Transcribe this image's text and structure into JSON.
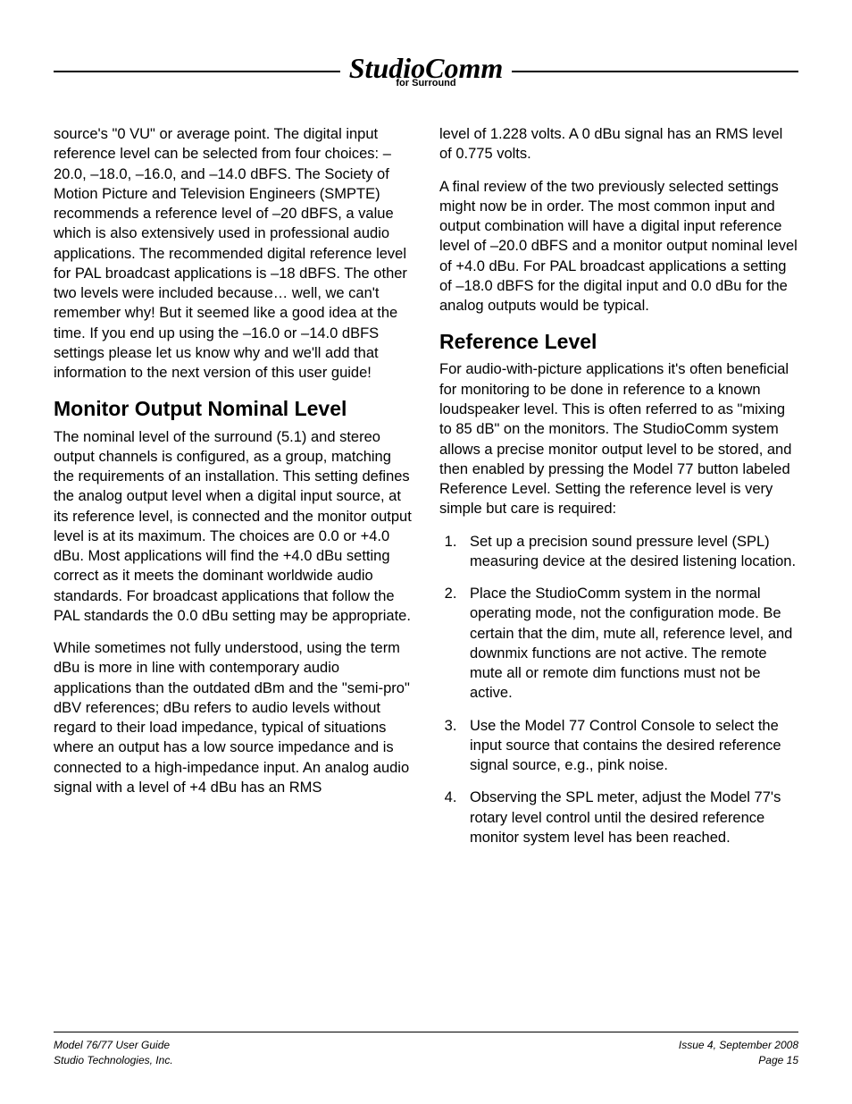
{
  "header": {
    "logo_main": "StudioComm",
    "logo_sub": "for Surround"
  },
  "left_column": {
    "para1": "source's \"0 VU\" or average point. The digital input reference level can be selected from four choices: –20.0, –18.0, –16.0, and –14.0 dBFS. The Society of Motion Picture and Television Engineers (SMPTE) recommends a reference level of –20 dBFS, a value which is also extensively used in professional audio applications. The recommended digital reference level for PAL broadcast applications is –18 dBFS. The other two levels were included because… well, we can't remember why! But it seemed like a good idea at the time. If you end up using the –16.0 or –14.0 dBFS settings please let us know why and we'll add that information to the next version of this user guide!",
    "heading1": "Monitor Output Nominal Level",
    "para2": "The nominal level of the surround (5.1) and stereo output channels is configured, as a group, matching the requirements of an installation. This setting defines the analog output level when a digital input source, at its reference level, is connected and the monitor output level is at its maximum. The choices are 0.0 or +4.0 dBu. Most applications will find the +4.0 dBu setting correct as it meets the dominant worldwide audio standards. For broadcast applications that follow the PAL standards the 0.0 dBu setting may be appropriate.",
    "para3": "While sometimes not fully understood, using the term dBu is more in line with contemporary audio applications than the outdated dBm and the \"semi-pro\" dBV references; dBu refers to audio levels without regard to their load impedance, typical of situations where an output has a low source impedance and is connected to a high-impedance input. An analog audio signal with a level of +4 dBu has an RMS"
  },
  "right_column": {
    "para1": "level of 1.228 volts. A 0 dBu signal has an RMS level of 0.775 volts.",
    "para2": "A final review of the two previously selected settings might now be in order. The most common input and output combination will have a digital input reference level of –20.0 dBFS and a monitor output nominal level of +4.0 dBu. For PAL broadcast applications a setting of –18.0 dBFS for the digital input and 0.0 dBu for the analog outputs would be typical.",
    "heading1": "Reference Level",
    "para3": "For audio-with-picture applications it's often beneficial for monitoring to be done in reference to a known loudspeaker level. This is often referred to as \"mixing to 85 dB\" on the monitors. The StudioComm system allows a precise monitor output level to be stored, and then enabled by pressing the Model 77 button labeled Reference Level. Setting the reference level is very simple but care is required:",
    "list": [
      "Set up a precision sound pressure level (SPL) measuring device at the desired listening location.",
      "Place the StudioComm system in the normal operating mode, not the configuration mode. Be certain that the dim, mute all, reference level, and downmix functions are not active. The remote mute all or remote dim functions must not be active.",
      "Use the Model 77 Control Console to select the input source that contains the desired reference signal source, e.g., pink noise.",
      "Observing the SPL meter, adjust the Model 77's rotary level control until the desired reference monitor system level has been reached."
    ]
  },
  "footer": {
    "left1": "Model 76/77 User Guide",
    "left2": "Studio Technologies, Inc.",
    "right1": "Issue 4, September 2008",
    "right2": "Page 15"
  }
}
